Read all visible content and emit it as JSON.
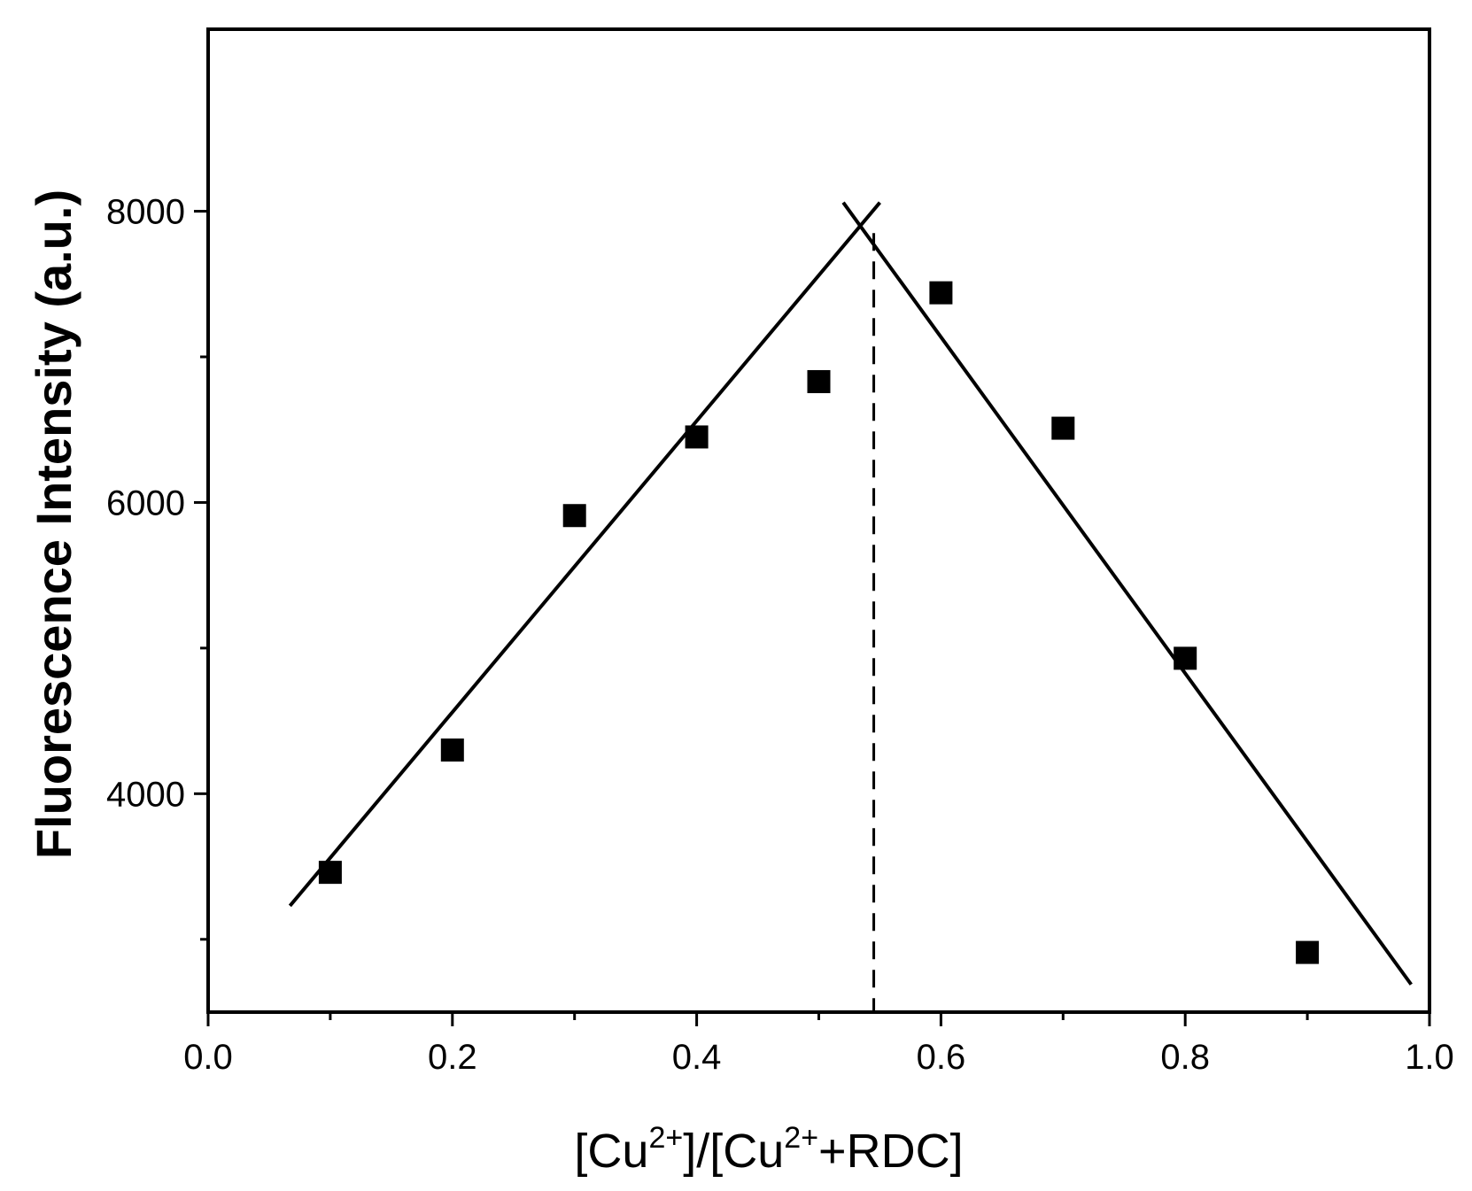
{
  "chart_data": {
    "type": "scatter",
    "xlabel_parts": [
      "[Cu",
      "2+",
      "]/[Cu",
      "2+",
      "+RDC]"
    ],
    "ylabel": "Fluorescence Intensity (a.u.)",
    "xlim": [
      0.0,
      1.0
    ],
    "ylim": [
      2500,
      9250
    ],
    "x_ticks": [
      0.0,
      0.2,
      0.4,
      0.6,
      0.8,
      1.0
    ],
    "x_tick_labels": [
      "0.0",
      "0.2",
      "0.4",
      "0.6",
      "0.8",
      "1.0"
    ],
    "x_minor_ticks": [
      0.1,
      0.3,
      0.5,
      0.7,
      0.9
    ],
    "y_ticks": [
      4000,
      6000,
      8000
    ],
    "y_tick_labels": [
      "4000",
      "6000",
      "8000"
    ],
    "y_minor_ticks": [
      3000,
      5000,
      7000
    ],
    "grid": false,
    "series": [
      {
        "x": [
          0.1,
          0.2,
          0.3,
          0.4,
          0.5,
          0.6,
          0.7,
          0.8,
          0.9
        ],
        "y": [
          3460,
          4300,
          5910,
          6450,
          6830,
          7440,
          6510,
          4930,
          2910
        ],
        "marker": "square",
        "color": "#000000"
      }
    ],
    "fit_lines": [
      {
        "x": [
          0.067,
          0.55
        ],
        "y": [
          3230,
          8060
        ],
        "style": "solid"
      },
      {
        "x": [
          0.52,
          0.985
        ],
        "y": [
          8060,
          2690
        ],
        "style": "solid"
      }
    ],
    "annotations": [
      {
        "type": "vline",
        "x": 0.545,
        "y_from": 2500,
        "y_to": 7850,
        "style": "dashed"
      }
    ]
  }
}
